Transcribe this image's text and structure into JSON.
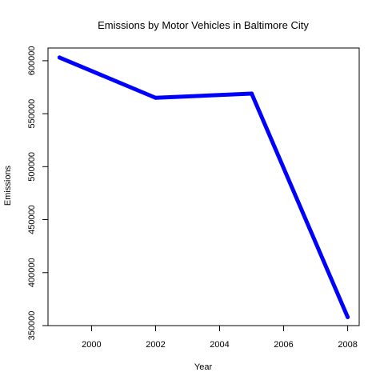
{
  "chart_data": {
    "type": "line",
    "title": "Emissions by Motor Vehicles in Baltimore City",
    "xlabel": "Year",
    "ylabel": "Emissions",
    "x": [
      1999,
      2002,
      2005,
      2008
    ],
    "series": [
      {
        "values": [
          603000,
          565000,
          569000,
          358000
        ],
        "color": "#0000ff"
      }
    ],
    "xlim": [
      1998.64,
      2008.36
    ],
    "ylim": [
      350000,
      612000
    ],
    "xticks": [
      2000,
      2002,
      2004,
      2006,
      2008
    ],
    "yticks": [
      350000,
      400000,
      450000,
      500000,
      550000,
      600000
    ],
    "grid": false,
    "legend": "none"
  }
}
